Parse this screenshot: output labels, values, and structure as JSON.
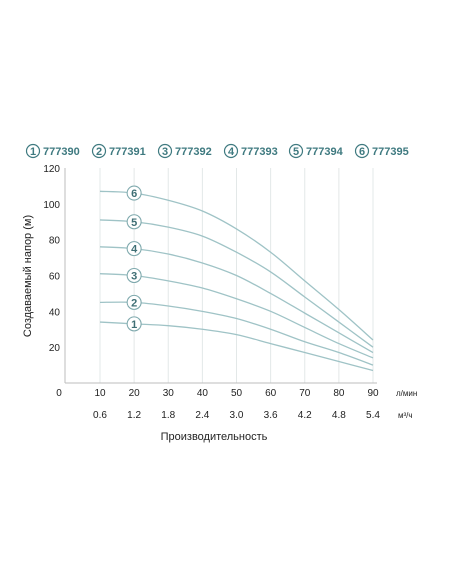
{
  "chart_data": {
    "type": "line",
    "title": "",
    "ylabel": "Создаваемый напор (м)",
    "xlabel": "Производительность",
    "x_unit": "л/мин",
    "x2_unit": "м³/ч",
    "x": [
      10,
      20,
      30,
      40,
      50,
      60,
      70,
      80,
      90
    ],
    "x_ticks": [
      "0",
      "10",
      "20",
      "30",
      "40",
      "50",
      "60",
      "70",
      "80",
      "90"
    ],
    "x2_ticks": [
      "0.6",
      "1.2",
      "1.8",
      "2.4",
      "3.0",
      "3.6",
      "4.2",
      "4.8",
      "5.4"
    ],
    "y_ticks": [
      "20",
      "40",
      "60",
      "80",
      "100",
      "120"
    ],
    "ylim": [
      0,
      120
    ],
    "xlim": [
      0,
      90
    ],
    "grid": "vertical",
    "line_color": "#9fc3c6",
    "accent_color": "#3f7a80",
    "series": [
      {
        "name": "1",
        "code": "777390",
        "values": [
          34,
          33,
          32,
          30,
          27,
          22,
          17,
          12,
          7
        ]
      },
      {
        "name": "2",
        "code": "777391",
        "values": [
          45,
          45,
          43,
          40,
          36,
          30,
          23,
          17,
          10
        ]
      },
      {
        "name": "3",
        "code": "777392",
        "values": [
          61,
          60,
          57,
          53,
          47,
          40,
          31,
          22,
          14
        ]
      },
      {
        "name": "4",
        "code": "777393",
        "values": [
          76,
          75,
          72,
          67,
          60,
          50,
          39,
          28,
          17
        ]
      },
      {
        "name": "5",
        "code": "777394",
        "values": [
          91,
          90,
          87,
          82,
          73,
          62,
          48,
          34,
          20
        ]
      },
      {
        "name": "6",
        "code": "777395",
        "values": [
          107,
          106,
          102,
          96,
          86,
          73,
          57,
          41,
          24
        ]
      }
    ]
  }
}
